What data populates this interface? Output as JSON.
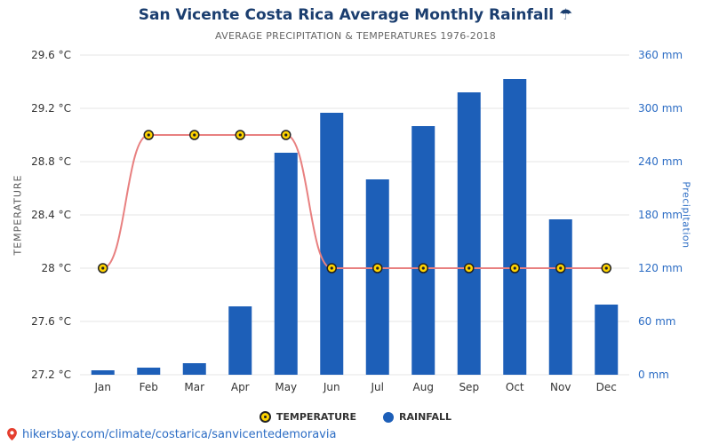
{
  "chart_data": {
    "type": "bar",
    "title": "San Vicente Costa Rica Average Monthly Rainfall ☂",
    "subtitle": "AVERAGE PRECIPITATION & TEMPERATURES 1976-2018",
    "categories": [
      "Jan",
      "Feb",
      "Mar",
      "Apr",
      "May",
      "Jun",
      "Jul",
      "Aug",
      "Sep",
      "Oct",
      "Nov",
      "Dec"
    ],
    "series": [
      {
        "name": "RAINFALL",
        "type": "bar",
        "axis": "right",
        "unit": "mm",
        "values": [
          5,
          8,
          13,
          77,
          250,
          295,
          220,
          280,
          318,
          333,
          175,
          79
        ]
      },
      {
        "name": "TEMPERATURE",
        "type": "line",
        "axis": "left",
        "unit": "°C",
        "values": [
          28,
          29,
          29,
          29,
          29,
          28,
          28,
          28,
          28,
          28,
          28,
          28
        ]
      }
    ],
    "y_left": {
      "title": "TEMPERATURE",
      "min": 27.2,
      "max": 29.6,
      "ticks": [
        27.2,
        27.6,
        28,
        28.4,
        28.8,
        29.2,
        29.6
      ],
      "tick_labels": [
        "27.2 °C",
        "27.6 °C",
        "28 °C",
        "28.4 °C",
        "28.8 °C",
        "29.2 °C",
        "29.6 °C"
      ]
    },
    "y_right": {
      "title": "Precipitation",
      "min": 0,
      "max": 360,
      "ticks": [
        0,
        60,
        120,
        180,
        240,
        300,
        360
      ],
      "tick_labels": [
        "0 mm",
        "60 mm",
        "120 mm",
        "180 mm",
        "240 mm",
        "300 mm",
        "360 mm"
      ]
    },
    "grid": true,
    "legend_position": "bottom"
  },
  "legend": {
    "temperature_label": "TEMPERATURE",
    "rainfall_label": "RAINFALL"
  },
  "footer": {
    "url": "hikersbay.com/climate/costarica/sanvicentedemoravia"
  },
  "colors": {
    "title": "#1b3e6f",
    "subtitle": "#666666",
    "bar": "#1d5fb8",
    "line": "#e88080",
    "marker_fill": "#ffd400",
    "marker_stroke": "#222222",
    "left_axis_text": "#333333",
    "right_axis_text": "#2b6cc4",
    "link": "#2b6cc4",
    "grid": "#e6e6e6",
    "pin": "#e53e2e"
  }
}
